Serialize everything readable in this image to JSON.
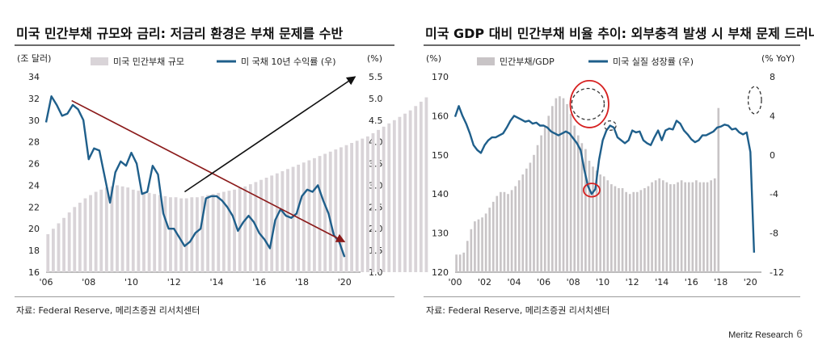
{
  "page": {
    "footer_brand": "Meritz Research",
    "page_number": "6"
  },
  "left": {
    "title": "미국 민간부채 규모와 금리: 저금리 환경은 부채 문제를 수반",
    "source": "자료: Federal Reserve, 메리츠증권 리서치센터"
  },
  "right": {
    "title": "미국 GDP 대비 민간부채 비율 추이: 외부충격 발생 시 부채 문제 드러나",
    "source": "자료: Federal Reserve, 메리츠증권 리서치센터"
  },
  "chart_data": [
    {
      "type": "bar+line",
      "title": "미국 민간부채 규모와 금리: 저금리 환경은 부채 문제를 수반",
      "y_left_unit": "(조 달러)",
      "y_right_unit": "(%)",
      "y_left_ticks": [
        "16",
        "18",
        "20",
        "22",
        "24",
        "26",
        "28",
        "30",
        "32",
        "34"
      ],
      "y_right_ticks": [
        "1.0",
        "1.5",
        "2.0",
        "2.5",
        "3.0",
        "3.5",
        "4.0",
        "4.5",
        "5.0",
        "5.5"
      ],
      "ylim_left": [
        16,
        34
      ],
      "ylim_right": [
        1.0,
        5.5
      ],
      "x_ticks": [
        "'06",
        "'08",
        "'10",
        "'12",
        "'14",
        "'16",
        "'18",
        "'20"
      ],
      "x_range": [
        2006.0,
        2020.75
      ],
      "series": [
        {
          "name": "미국 민간부채 규모",
          "kind": "bar",
          "axis": "left",
          "color": "#d9d4d8",
          "x_start": 2006.0,
          "step": 0.25,
          "values": [
            19.5,
            20.0,
            20.5,
            21.0,
            21.5,
            22.0,
            22.4,
            22.8,
            23.1,
            23.4,
            23.6,
            23.8,
            23.9,
            24.0,
            23.9,
            23.8,
            23.6,
            23.5,
            23.4,
            23.3,
            23.2,
            23.1,
            23.0,
            22.9,
            22.9,
            22.8,
            22.8,
            22.9,
            22.9,
            23.0,
            23.1,
            23.2,
            23.3,
            23.4,
            23.5,
            23.6,
            23.8,
            23.9,
            24.1,
            24.3,
            24.5,
            24.7,
            24.9,
            25.1,
            25.3,
            25.5,
            25.7,
            25.9,
            26.1,
            26.3,
            26.5,
            26.7,
            26.9,
            27.1,
            27.3,
            27.5,
            27.7,
            27.9,
            28.1,
            28.3,
            28.5,
            28.8,
            29.1,
            29.4,
            29.7,
            30.0,
            30.3,
            30.6,
            30.9,
            31.3,
            31.7,
            32.1
          ]
        },
        {
          "name": "미 국채 10년 수익률 (우)",
          "kind": "line",
          "axis": "right",
          "color": "#1f5f8b",
          "points": [
            [
              2006.0,
              4.45
            ],
            [
              2006.25,
              5.05
            ],
            [
              2006.5,
              4.85
            ],
            [
              2006.75,
              4.6
            ],
            [
              2007.0,
              4.65
            ],
            [
              2007.25,
              4.85
            ],
            [
              2007.5,
              4.75
            ],
            [
              2007.75,
              4.5
            ],
            [
              2008.0,
              3.6
            ],
            [
              2008.25,
              3.85
            ],
            [
              2008.5,
              3.8
            ],
            [
              2008.75,
              3.2
            ],
            [
              2009.0,
              2.6
            ],
            [
              2009.25,
              3.3
            ],
            [
              2009.5,
              3.55
            ],
            [
              2009.75,
              3.45
            ],
            [
              2010.0,
              3.75
            ],
            [
              2010.25,
              3.5
            ],
            [
              2010.5,
              2.8
            ],
            [
              2010.75,
              2.85
            ],
            [
              2011.0,
              3.45
            ],
            [
              2011.25,
              3.25
            ],
            [
              2011.5,
              2.35
            ],
            [
              2011.75,
              2.0
            ],
            [
              2012.0,
              2.0
            ],
            [
              2012.25,
              1.8
            ],
            [
              2012.5,
              1.6
            ],
            [
              2012.75,
              1.7
            ],
            [
              2013.0,
              1.9
            ],
            [
              2013.25,
              2.0
            ],
            [
              2013.5,
              2.7
            ],
            [
              2013.75,
              2.75
            ],
            [
              2014.0,
              2.75
            ],
            [
              2014.25,
              2.65
            ],
            [
              2014.5,
              2.5
            ],
            [
              2014.75,
              2.3
            ],
            [
              2015.0,
              1.95
            ],
            [
              2015.25,
              2.15
            ],
            [
              2015.5,
              2.3
            ],
            [
              2015.75,
              2.15
            ],
            [
              2016.0,
              1.9
            ],
            [
              2016.25,
              1.75
            ],
            [
              2016.5,
              1.55
            ],
            [
              2016.75,
              2.2
            ],
            [
              2017.0,
              2.45
            ],
            [
              2017.25,
              2.3
            ],
            [
              2017.5,
              2.25
            ],
            [
              2017.75,
              2.35
            ],
            [
              2018.0,
              2.75
            ],
            [
              2018.25,
              2.9
            ],
            [
              2018.5,
              2.85
            ],
            [
              2018.75,
              3.0
            ],
            [
              2019.0,
              2.65
            ],
            [
              2019.25,
              2.35
            ],
            [
              2019.5,
              1.85
            ],
            [
              2019.75,
              1.7
            ],
            [
              2020.0,
              1.35
            ]
          ]
        }
      ],
      "annotations": [
        {
          "type": "arrow",
          "color": "#8b1a1a",
          "from": [
            2007.2,
            4.95
          ],
          "to": [
            2020.0,
            1.7
          ],
          "axis": "right"
        },
        {
          "type": "arrow",
          "color": "#111111",
          "from": [
            2012.5,
            2.85
          ],
          "to": [
            2020.5,
            5.5
          ],
          "axis": "right"
        }
      ]
    },
    {
      "type": "bar+line",
      "title": "미국 GDP 대비 민간부채 비율 추이: 외부충격 발생 시 부채 문제 드러나",
      "y_left_unit": "(%)",
      "y_right_unit": "(% YoY)",
      "y_left_ticks": [
        "120",
        "130",
        "140",
        "150",
        "160",
        "170"
      ],
      "y_right_ticks": [
        "-12",
        "-8",
        "-4",
        "0",
        "4",
        "8"
      ],
      "ylim_left": [
        120,
        170
      ],
      "ylim_right": [
        -12,
        8
      ],
      "x_ticks": [
        "'00",
        "'02",
        "'04",
        "'06",
        "'08",
        "'10",
        "'12",
        "'14",
        "'16",
        "'18",
        "'20"
      ],
      "x_range": [
        2000.0,
        2020.75
      ],
      "series": [
        {
          "name": "민간부채/GDP",
          "kind": "bar",
          "axis": "left",
          "color": "#c8c4c6",
          "x_start": 2000.0,
          "step": 0.25,
          "values": [
            124.5,
            124.5,
            125.0,
            128.0,
            131.0,
            133.0,
            133.5,
            134.0,
            135.0,
            136.5,
            138.0,
            139.5,
            140.5,
            140.5,
            140.0,
            141.0,
            142.0,
            143.5,
            145.0,
            146.5,
            148.0,
            150.0,
            152.5,
            155.0,
            157.5,
            160.0,
            162.5,
            164.5,
            165.0,
            164.5,
            163.0,
            160.5,
            157.5,
            155.0,
            153.0,
            151.5,
            148.5,
            147.0,
            146.0,
            145.0,
            144.5,
            143.5,
            142.5,
            142.0,
            141.5,
            141.5,
            140.5,
            140.0,
            140.5,
            140.5,
            141.0,
            141.5,
            142.0,
            143.0,
            143.5,
            144.0,
            143.5,
            143.0,
            142.5,
            142.5,
            143.0,
            143.5,
            143.0,
            143.0,
            143.0,
            143.5,
            143.0,
            143.0,
            143.0,
            143.5,
            144.0,
            162.0
          ]
        },
        {
          "name": "미국 실질 성장률 (우)",
          "kind": "line",
          "axis": "right",
          "color": "#1f5f8b",
          "points": [
            [
              2000.0,
              3.9
            ],
            [
              2000.25,
              5.0
            ],
            [
              2000.5,
              4.0
            ],
            [
              2000.75,
              3.2
            ],
            [
              2001.0,
              2.2
            ],
            [
              2001.25,
              1.0
            ],
            [
              2001.5,
              0.5
            ],
            [
              2001.75,
              0.2
            ],
            [
              2002.0,
              1.0
            ],
            [
              2002.25,
              1.5
            ],
            [
              2002.5,
              1.8
            ],
            [
              2002.75,
              1.8
            ],
            [
              2003.0,
              2.0
            ],
            [
              2003.25,
              2.2
            ],
            [
              2003.5,
              2.8
            ],
            [
              2003.75,
              3.5
            ],
            [
              2004.0,
              4.0
            ],
            [
              2004.25,
              3.8
            ],
            [
              2004.5,
              3.6
            ],
            [
              2004.75,
              3.4
            ],
            [
              2005.0,
              3.5
            ],
            [
              2005.25,
              3.2
            ],
            [
              2005.5,
              3.3
            ],
            [
              2005.75,
              3.0
            ],
            [
              2006.0,
              3.0
            ],
            [
              2006.25,
              2.8
            ],
            [
              2006.5,
              2.4
            ],
            [
              2006.75,
              2.2
            ],
            [
              2007.0,
              2.0
            ],
            [
              2007.25,
              2.2
            ],
            [
              2007.5,
              2.4
            ],
            [
              2007.75,
              2.2
            ],
            [
              2008.0,
              1.7
            ],
            [
              2008.25,
              1.2
            ],
            [
              2008.5,
              0.5
            ],
            [
              2008.75,
              -1.5
            ],
            [
              2009.0,
              -3.2
            ],
            [
              2009.25,
              -4.0
            ],
            [
              2009.5,
              -3.5
            ],
            [
              2009.75,
              -0.5
            ],
            [
              2010.0,
              1.5
            ],
            [
              2010.25,
              2.5
            ],
            [
              2010.5,
              3.0
            ],
            [
              2010.75,
              2.8
            ],
            [
              2011.0,
              1.8
            ],
            [
              2011.25,
              1.5
            ],
            [
              2011.5,
              1.2
            ],
            [
              2011.75,
              1.5
            ],
            [
              2012.0,
              2.5
            ],
            [
              2012.25,
              2.3
            ],
            [
              2012.5,
              2.4
            ],
            [
              2012.75,
              1.5
            ],
            [
              2013.0,
              1.2
            ],
            [
              2013.25,
              1.0
            ],
            [
              2013.5,
              1.8
            ],
            [
              2013.75,
              2.5
            ],
            [
              2014.0,
              1.5
            ],
            [
              2014.25,
              2.5
            ],
            [
              2014.5,
              2.7
            ],
            [
              2014.75,
              2.6
            ],
            [
              2015.0,
              3.5
            ],
            [
              2015.25,
              3.2
            ],
            [
              2015.5,
              2.5
            ],
            [
              2015.75,
              2.1
            ],
            [
              2016.0,
              1.6
            ],
            [
              2016.25,
              1.3
            ],
            [
              2016.5,
              1.5
            ],
            [
              2016.75,
              2.0
            ],
            [
              2017.0,
              2.0
            ],
            [
              2017.25,
              2.2
            ],
            [
              2017.5,
              2.4
            ],
            [
              2017.75,
              2.8
            ],
            [
              2018.0,
              2.9
            ],
            [
              2018.25,
              3.1
            ],
            [
              2018.5,
              3.0
            ],
            [
              2018.75,
              2.6
            ],
            [
              2019.0,
              2.7
            ],
            [
              2019.25,
              2.3
            ],
            [
              2019.5,
              2.1
            ],
            [
              2019.75,
              2.3
            ],
            [
              2020.0,
              0.3
            ],
            [
              2020.25,
              -10.0
            ]
          ]
        }
      ],
      "annotations": [
        {
          "type": "ellipse",
          "style": "dashed",
          "color": "#333333",
          "center": [
            2009.0,
            163.0
          ],
          "rx_years": 1.1,
          "ry_units": 4.0
        },
        {
          "type": "ellipse",
          "style": "solid",
          "color": "#d62020",
          "center": [
            2009.1,
            163.0
          ],
          "rx_years": 1.3,
          "ry_units": 6.0
        },
        {
          "type": "ellipse",
          "style": "solid",
          "color": "#d62020",
          "center": [
            2009.25,
            141.0
          ],
          "rx_years": 0.55,
          "ry_units": 1.7
        },
        {
          "type": "ellipse",
          "style": "dashed",
          "color": "#333333",
          "center": [
            2020.3,
            164.0
          ],
          "rx_years": 0.45,
          "ry_units": 3.5
        },
        {
          "type": "ellipse",
          "style": "dashed",
          "color": "#444444",
          "center": [
            2010.5,
            157.5
          ],
          "rx_years": 0.4,
          "ry_units": 1.2
        }
      ]
    }
  ]
}
